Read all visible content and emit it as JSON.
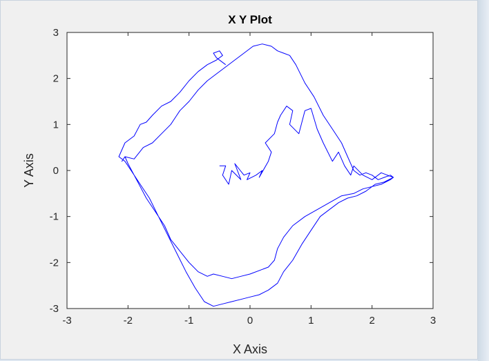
{
  "chart_data": {
    "type": "line",
    "title": "X Y Plot",
    "xlabel": "X Axis",
    "ylabel": "Y Axis",
    "xlim": [
      -3,
      3
    ],
    "ylim": [
      -3,
      3
    ],
    "xticks": [
      "-3",
      "-2",
      "-1",
      "0",
      "1",
      "2",
      "3"
    ],
    "yticks": [
      "3",
      "2",
      "1",
      "0",
      "-1",
      "-2",
      "-3"
    ],
    "grid": false,
    "colors": {
      "line": "#0000ff",
      "axes_bg": "#ffffff",
      "figure_bg": "#f0f0f0"
    },
    "series": [
      {
        "x": [
          -0.5,
          -0.4,
          -0.45,
          -0.35,
          -0.3,
          -0.15,
          -0.25,
          -0.1,
          0.0,
          -0.05,
          0.1,
          0.2,
          0.15,
          0.3,
          0.35,
          0.25,
          0.4,
          0.45,
          0.5,
          0.6,
          0.7,
          0.65,
          0.8,
          0.9,
          1.0,
          1.1,
          1.2,
          1.35,
          1.45,
          1.55,
          1.65,
          1.7,
          1.85,
          2.0,
          2.15,
          2.25,
          2.35,
          2.3,
          2.15,
          2.0,
          1.85,
          1.7,
          1.5,
          1.3,
          1.1,
          0.9,
          0.7,
          0.55,
          0.45,
          0.4,
          0.3,
          0.2,
          0.0,
          -0.15,
          -0.3,
          -0.45,
          -0.6,
          -0.7,
          -0.85,
          -1.0,
          -1.15,
          -1.3,
          -1.4,
          -1.55,
          -1.7,
          -1.8,
          -1.9,
          -2.0,
          -2.05,
          -2.1,
          -2.05,
          -1.9,
          -1.75,
          -1.6,
          -1.45,
          -1.3,
          -1.15,
          -1.0,
          -0.85,
          -0.7,
          -0.55,
          -0.4,
          -0.25,
          -0.1,
          0.05,
          0.2,
          0.35,
          0.45,
          0.55,
          0.65,
          0.75,
          0.9,
          1.05,
          1.2,
          1.35,
          1.5,
          1.6,
          1.7,
          1.8,
          1.9,
          2.0,
          2.1,
          2.2,
          2.3,
          2.35,
          2.2,
          2.05,
          1.9,
          1.75,
          1.6,
          1.45,
          1.3,
          1.15,
          1.0,
          0.85,
          0.7,
          0.55,
          0.45,
          0.3,
          0.15,
          0.0,
          -0.15,
          -0.3,
          -0.45,
          -0.6,
          -0.75,
          -0.9,
          -1.05,
          -1.2,
          -1.35,
          -1.5,
          -1.65,
          -1.8,
          -1.95,
          -2.05,
          -2.15,
          -2.05,
          -1.9,
          -1.8,
          -1.7,
          -1.6,
          -1.45,
          -1.3,
          -1.15,
          -1.0,
          -0.85,
          -0.7,
          -0.55,
          -0.45,
          -0.5,
          -0.6,
          -0.55,
          -0.4
        ],
        "y": [
          0.1,
          0.1,
          -0.1,
          -0.3,
          0.0,
          -0.2,
          0.15,
          -0.1,
          -0.05,
          -0.2,
          -0.1,
          0.0,
          -0.15,
          0.2,
          0.4,
          0.6,
          0.8,
          1.05,
          1.2,
          1.4,
          1.3,
          1.0,
          0.8,
          1.3,
          1.35,
          0.9,
          0.6,
          0.2,
          0.4,
          0.1,
          -0.1,
          0.1,
          -0.1,
          -0.2,
          -0.05,
          -0.1,
          -0.15,
          -0.2,
          -0.3,
          -0.35,
          -0.4,
          -0.5,
          -0.55,
          -0.7,
          -0.85,
          -1.0,
          -1.2,
          -1.45,
          -1.7,
          -1.95,
          -2.1,
          -2.15,
          -2.25,
          -2.3,
          -2.35,
          -2.3,
          -2.25,
          -2.3,
          -2.2,
          -2.0,
          -1.75,
          -1.5,
          -1.2,
          -0.9,
          -0.6,
          -0.35,
          -0.1,
          0.15,
          0.3,
          0.2,
          0.3,
          0.25,
          0.5,
          0.6,
          0.8,
          1.0,
          1.3,
          1.5,
          1.75,
          1.95,
          2.1,
          2.25,
          2.4,
          2.55,
          2.7,
          2.75,
          2.7,
          2.6,
          2.55,
          2.5,
          2.3,
          1.9,
          1.6,
          1.2,
          0.9,
          0.6,
          0.3,
          0.0,
          -0.1,
          -0.05,
          -0.1,
          -0.2,
          -0.15,
          -0.1,
          -0.15,
          -0.25,
          -0.3,
          -0.45,
          -0.55,
          -0.6,
          -0.7,
          -0.85,
          -1.0,
          -1.3,
          -1.6,
          -1.95,
          -2.2,
          -2.45,
          -2.6,
          -2.7,
          -2.75,
          -2.8,
          -2.85,
          -2.9,
          -2.95,
          -2.85,
          -2.55,
          -2.2,
          -1.8,
          -1.4,
          -1.0,
          -0.6,
          -0.3,
          0.0,
          0.2,
          0.3,
          0.6,
          0.75,
          1.0,
          1.05,
          1.2,
          1.4,
          1.5,
          1.7,
          1.95,
          2.15,
          2.3,
          2.4,
          2.5,
          2.6,
          2.55,
          2.45,
          2.3
        ]
      }
    ]
  }
}
